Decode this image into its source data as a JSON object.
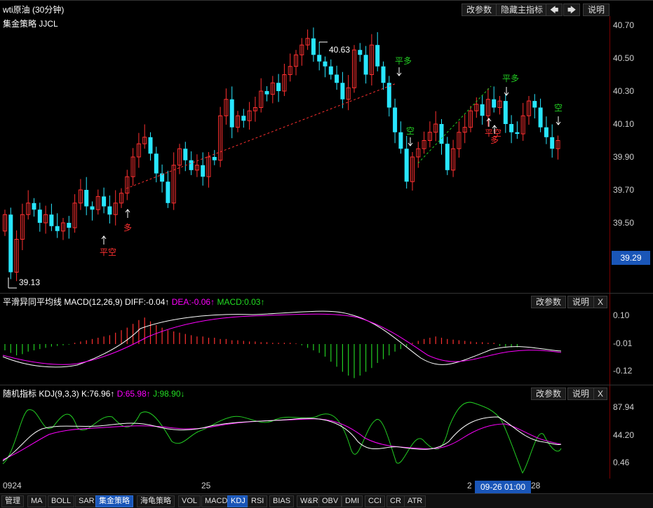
{
  "window": {
    "title": "wti原油 (30分钟)"
  },
  "top_buttons": {
    "params": "改参数",
    "hide": "隐藏主指标",
    "left": "🡄",
    "right": "🡆",
    "help": "说明"
  },
  "main": {
    "strategy": "集金策略 JJCL",
    "y_labels": [
      "40.70",
      "40.50",
      "40.30",
      "40.10",
      "39.90",
      "39.70",
      "39.50"
    ],
    "current_price": "39.29",
    "low_label": "39.13",
    "high_label": "40.63",
    "signals": [
      {
        "text": "平空",
        "color": "#ff3030"
      },
      {
        "text": "多",
        "color": "#ff3030"
      },
      {
        "text": "平多",
        "color": "#22cc22"
      },
      {
        "text": "空",
        "color": "#22cc22"
      },
      {
        "text": "平空",
        "color": "#ff3030"
      },
      {
        "text": "多",
        "color": "#ff3030"
      },
      {
        "text": "平多",
        "color": "#22cc22"
      },
      {
        "text": "空",
        "color": "#22cc22"
      }
    ]
  },
  "macd": {
    "name": "平滑异同平均线 MACD(12,26,9)",
    "diff": "DIFF:-0.04↑",
    "dea": "DEA:-0.06↑",
    "macd": "MACD:0.03↑",
    "y_labels": [
      "0.10",
      "-0.01",
      "-0.12"
    ],
    "btn_params": "改参数",
    "btn_help": "说明",
    "btn_close": "X"
  },
  "kdj": {
    "name": "随机指标 KDJ(9,3,3)",
    "k": "K:76.96↑",
    "d": "D:65.98↑",
    "j": "J:98.90↓",
    "y_labels": [
      "87.94",
      "44.20",
      "0.46"
    ],
    "btn_params": "改参数",
    "btn_help": "说明",
    "btn_close": "X"
  },
  "x_axis": {
    "labels": [
      "0924",
      "25",
      "2",
      "28"
    ],
    "cursor": "09-26 01:00"
  },
  "tabs": [
    "管理",
    "MA",
    "BOLL",
    "SAR",
    "集金策略",
    "海龟策略",
    "VOL",
    "MACD",
    "KDJ",
    "RSI",
    "BIAS",
    "W&R",
    "OBV",
    "DMI",
    "CCI",
    "CR",
    "ATR"
  ],
  "active_tabs": [
    "集金策略",
    "KDJ"
  ],
  "colors": {
    "up": "#ff3030",
    "down": "#28e6ff",
    "diff": "#ffffff",
    "dea": "#ff00ff",
    "j": "#22cc22"
  }
}
